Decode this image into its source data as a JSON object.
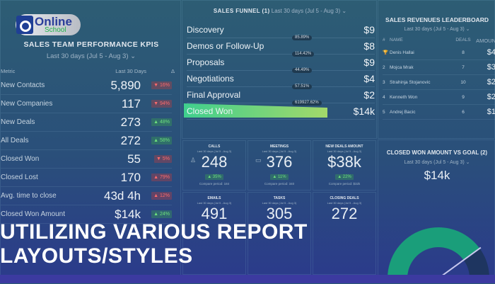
{
  "logo": {
    "line1": "Online",
    "line2": "School"
  },
  "kpis": {
    "title": "SALES TEAM PERFORMANCE KPIS",
    "range": "Last 30 days (Jul 5 - Aug 3)",
    "col_metric": "Metric",
    "col_period": "Last 30 Days",
    "col_delta": "Δ",
    "rows": [
      {
        "metric": "New Contacts",
        "value": "5,890",
        "delta": "▼ 16%",
        "dir": "bad"
      },
      {
        "metric": "New Companies",
        "value": "117",
        "delta": "▼ 94%",
        "dir": "bad"
      },
      {
        "metric": "New Deals",
        "value": "273",
        "delta": "▲ 48%",
        "dir": "good"
      },
      {
        "metric": "All Deals",
        "value": "272",
        "delta": "▲ 58%",
        "dir": "good"
      },
      {
        "metric": "Closed Won",
        "value": "55",
        "delta": "▼ 5%",
        "dir": "bad"
      },
      {
        "metric": "Closed Lost",
        "value": "170",
        "delta": "▲ 79%",
        "dir": "bad"
      },
      {
        "metric": "Avg. time to close",
        "value": "43d 4h",
        "delta": "▲ 12%",
        "dir": "bad"
      },
      {
        "metric": "Closed Won Amount",
        "value": "$14k",
        "delta": "▲ 24%",
        "dir": "good"
      }
    ]
  },
  "funnel": {
    "title": "SALES FUNNEL (1)",
    "range": "Last 30 days (Jul 5 - Aug 3)",
    "stages": [
      {
        "name": "Discovery",
        "amount": "$9"
      },
      {
        "name": "Demos or Follow-Up",
        "amount": "$8"
      },
      {
        "name": "Proposals",
        "amount": "$9"
      },
      {
        "name": "Negotiations",
        "amount": "$4"
      },
      {
        "name": "Final Approval",
        "amount": "$2"
      },
      {
        "name": "Closed Won",
        "amount": "$14k"
      }
    ],
    "conversions": [
      "85.89%",
      "114.42%",
      "44.49%",
      "57.51%",
      "619927.62%"
    ]
  },
  "leaderboard": {
    "title": "SALES REVENUES LEADERBOARD",
    "range": "Last 30 days (Jul 5 - Aug 3)",
    "col_rank": "#",
    "col_name": "NAME",
    "col_deals": "DEALS",
    "col_amount": "AMOUN",
    "rows": [
      {
        "rank": "🏆",
        "name": "Denis Hallai",
        "deals": "8",
        "amount": "$4"
      },
      {
        "rank": "2",
        "name": "Mojca Mrak",
        "deals": "7",
        "amount": "$3"
      },
      {
        "rank": "3",
        "name": "Strahinja Stojanovic",
        "deals": "10",
        "amount": "$2"
      },
      {
        "rank": "4",
        "name": "Kenneth Won",
        "deals": "9",
        "amount": "$2"
      },
      {
        "rank": "5",
        "name": "Andrej Bacic",
        "deals": "6",
        "amount": "$1"
      }
    ]
  },
  "tiles": [
    {
      "title": "CALLS",
      "range": "Last 30 days (Jul 5 - Aug 3)",
      "value": "248",
      "delta": "▲ 35%",
      "compare": "Compare period: 184"
    },
    {
      "title": "MEETINGS",
      "range": "Last 30 days (Jul 5 - Aug 3)",
      "value": "376",
      "delta": "▲ 11%",
      "compare": "Compare period: 340"
    },
    {
      "title": "NEW DEALS AMOUNT",
      "range": "Last 30 days (Jul 5 - Aug 3)",
      "value": "$38k",
      "delta": "▲ 22%",
      "compare": "Compare period: $32k"
    },
    {
      "title": "EMAILS",
      "range": "Last 30 days (Jul 5 - Aug 3)",
      "value": "491"
    },
    {
      "title": "TASKS",
      "range": "Last 30 days (Jul 5 - Aug 3)",
      "value": "305"
    },
    {
      "title": "CLOSING DEALS",
      "range": "Last 30 days (Jul 5 - Aug 3)",
      "value": "272"
    }
  ],
  "gauge": {
    "title": "CLOSED WON AMOUNT VS GOAL (2)",
    "range": "Last 30 days (Jul 5 - Aug 3)",
    "value": "$14k",
    "fraction": 0.8,
    "fill_color": "#1a9e7a"
  },
  "banner": {
    "text": "UTILIZING VARIOUS REPORT LAYOUTS/STYLES"
  }
}
